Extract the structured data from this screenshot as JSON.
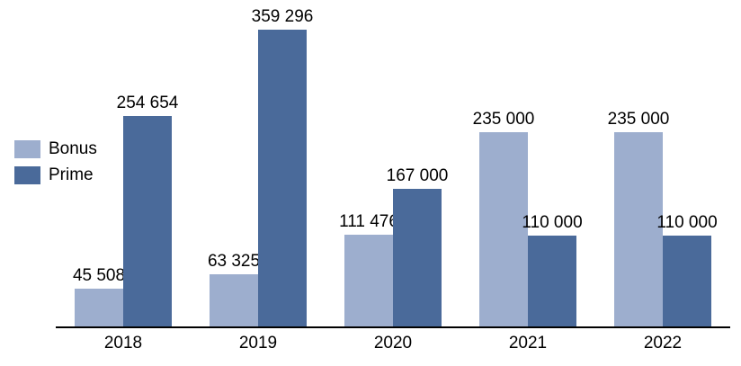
{
  "chart_data": {
    "type": "bar",
    "title": "",
    "xlabel": "",
    "ylabel": "",
    "categories": [
      "2018",
      "2019",
      "2020",
      "2021",
      "2022"
    ],
    "series": [
      {
        "name": "Bonus",
        "color": "#9DAECE",
        "values": [
          45508,
          63325,
          111476,
          235000,
          235000
        ],
        "labels": [
          "45 508",
          "63 325",
          "111 476",
          "235 000",
          "235 000"
        ]
      },
      {
        "name": "Prime",
        "color": "#4A6A9A",
        "values": [
          254654,
          359296,
          167000,
          110000,
          110000
        ],
        "labels": [
          "254 654",
          "359 296",
          "167 000",
          "110 000",
          "110 000"
        ]
      }
    ],
    "ylim": [
      0,
      359296
    ],
    "grid": false,
    "y_axis_visible": false,
    "data_labels": true,
    "legend_position": "middle-left",
    "axis_line_color": "#000000",
    "text_color": "#000000",
    "background_color": "#FFFFFF"
  }
}
